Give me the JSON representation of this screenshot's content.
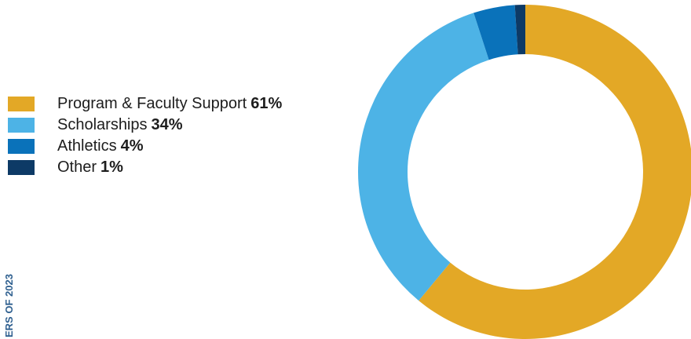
{
  "side_text": "ERS OF 2023",
  "chart_data": {
    "type": "pie",
    "title": "",
    "donut": true,
    "categories": [
      "Program & Faculty Support",
      "Scholarships",
      "Athletics",
      "Other"
    ],
    "values": [
      61,
      34,
      4,
      1
    ],
    "percent_labels": [
      "61%",
      "34%",
      "4%",
      "1%"
    ],
    "colors": [
      "#E3A826",
      "#4DB3E6",
      "#0A72BA",
      "#0D3A66"
    ],
    "legend_position": "left"
  }
}
